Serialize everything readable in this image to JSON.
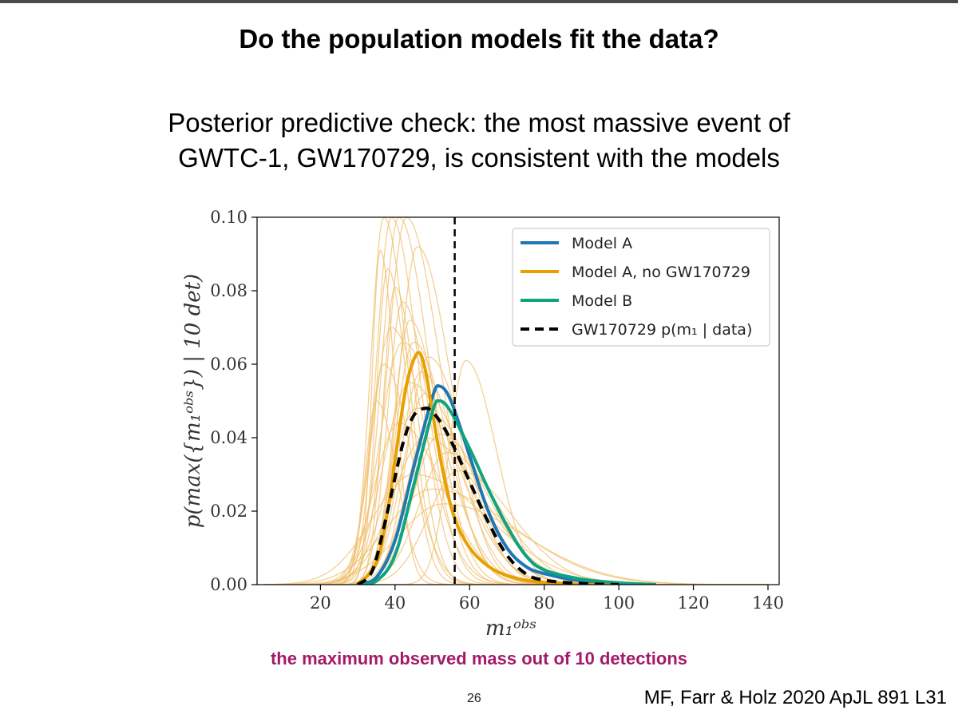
{
  "slide": {
    "title": "Do the population models fit the data?",
    "subtitle_line1": "Posterior predictive check: the most massive event of",
    "subtitle_line2": "GWTC-1, GW170729, is consistent with the models",
    "caption": "the maximum observed mass out of 10 detections",
    "page_number": "26",
    "citation": "MF, Farr & Holz 2020 ApJL 891 L31"
  },
  "chart_data": {
    "type": "line",
    "xlabel": "m_1^obs",
    "ylabel": "p(max({m_1^obs}) | 10 det)",
    "xlim": [
      3,
      143
    ],
    "ylim": [
      0,
      0.1
    ],
    "xticks": [
      "20",
      "40",
      "60",
      "80",
      "100",
      "120",
      "140"
    ],
    "xtick_values": [
      20,
      40,
      60,
      80,
      100,
      120,
      140
    ],
    "yticks": [
      "0.00",
      "0.02",
      "0.04",
      "0.06",
      "0.08",
      "0.10"
    ],
    "ytick_values": [
      0,
      0.02,
      0.04,
      0.06,
      0.08,
      0.1
    ],
    "vline_x": 56,
    "colors": {
      "model_a": "#1f77b4",
      "model_a_no_gw": "#e8a000",
      "model_b": "#10a37f",
      "gw_posterior": "#000000",
      "draws": "#f0c070"
    },
    "legend": {
      "placement": "top-right",
      "entries": [
        {
          "label": "Model A",
          "style": "solid",
          "color": "#1f77b4"
        },
        {
          "label": "Model A, no GW170729",
          "style": "solid",
          "color": "#e8a000"
        },
        {
          "label": "Model B",
          "style": "solid",
          "color": "#10a37f"
        },
        {
          "label": "GW170729 p(m₁ | data)",
          "style": "dashed",
          "color": "#000000"
        }
      ]
    },
    "series": [
      {
        "name": "Model A",
        "x": [
          30,
          35,
          40,
          45,
          50,
          52,
          55,
          60,
          65,
          70,
          75,
          80,
          90,
          100,
          110
        ],
        "y": [
          0.0,
          0.002,
          0.012,
          0.032,
          0.051,
          0.054,
          0.05,
          0.035,
          0.02,
          0.01,
          0.005,
          0.003,
          0.001,
          0.0004,
          0.0
        ]
      },
      {
        "name": "Model A, no GW170729",
        "x": [
          30,
          35,
          38,
          40,
          43,
          46,
          48,
          50,
          53,
          56,
          60,
          65,
          70,
          75,
          80,
          90,
          100
        ],
        "y": [
          0.0,
          0.006,
          0.02,
          0.034,
          0.054,
          0.063,
          0.059,
          0.047,
          0.03,
          0.018,
          0.01,
          0.005,
          0.0025,
          0.0012,
          0.0006,
          0.0001,
          0.0
        ]
      },
      {
        "name": "Model B",
        "x": [
          30,
          35,
          40,
          45,
          50,
          52,
          55,
          60,
          65,
          70,
          75,
          80,
          90,
          100,
          110
        ],
        "y": [
          0.0,
          0.001,
          0.008,
          0.027,
          0.047,
          0.05,
          0.047,
          0.037,
          0.026,
          0.016,
          0.008,
          0.004,
          0.0015,
          0.0005,
          0.0
        ]
      },
      {
        "name": "GW170729 p(m1 | data)",
        "x": [
          30,
          34,
          38,
          42,
          45,
          48,
          50,
          53,
          56,
          60,
          65,
          70,
          75,
          80,
          90,
          100
        ],
        "y": [
          0.0,
          0.004,
          0.02,
          0.038,
          0.046,
          0.048,
          0.047,
          0.043,
          0.037,
          0.028,
          0.017,
          0.008,
          0.003,
          0.0012,
          0.0003,
          0.0
        ]
      }
    ],
    "draws": [
      {
        "peak": 36,
        "height": 0.091,
        "width": 2.2
      },
      {
        "peak": 37,
        "height": 0.1,
        "width": 3.5
      },
      {
        "peak": 38,
        "height": 0.086,
        "width": 3.0
      },
      {
        "peak": 39,
        "height": 0.1,
        "width": 4.0
      },
      {
        "peak": 40,
        "height": 0.081,
        "width": 3.2
      },
      {
        "peak": 41,
        "height": 0.1,
        "width": 4.5
      },
      {
        "peak": 42,
        "height": 0.077,
        "width": 4.0
      },
      {
        "peak": 43,
        "height": 0.1,
        "width": 5.0
      },
      {
        "peak": 44,
        "height": 0.072,
        "width": 4.4
      },
      {
        "peak": 45,
        "height": 0.066,
        "width": 5.0
      },
      {
        "peak": 46,
        "height": 0.092,
        "width": 5.0
      },
      {
        "peak": 47,
        "height": 0.058,
        "width": 5.5
      },
      {
        "peak": 48,
        "height": 0.052,
        "width": 6.0
      },
      {
        "peak": 49,
        "height": 0.062,
        "width": 5.5
      },
      {
        "peak": 50,
        "height": 0.046,
        "width": 6.5
      },
      {
        "peak": 52,
        "height": 0.041,
        "width": 7.0
      },
      {
        "peak": 54,
        "height": 0.036,
        "width": 7.5
      },
      {
        "peak": 57,
        "height": 0.031,
        "width": 8.0
      },
      {
        "peak": 59,
        "height": 0.061,
        "width": 4.5
      },
      {
        "peak": 42,
        "height": 0.066,
        "width": 6.0
      },
      {
        "peak": 44,
        "height": 0.055,
        "width": 7.0
      },
      {
        "peak": 46,
        "height": 0.048,
        "width": 7.5
      },
      {
        "peak": 48,
        "height": 0.04,
        "width": 8.5
      },
      {
        "peak": 39,
        "height": 0.07,
        "width": 5.0
      },
      {
        "peak": 37,
        "height": 0.06,
        "width": 4.0
      },
      {
        "peak": 45,
        "height": 0.03,
        "width": 11.0
      },
      {
        "peak": 50,
        "height": 0.026,
        "width": 12.0
      },
      {
        "peak": 35,
        "height": 0.05,
        "width": 3.0
      },
      {
        "peak": 41,
        "height": 0.044,
        "width": 6.5
      },
      {
        "peak": 53,
        "height": 0.022,
        "width": 12.0
      }
    ]
  }
}
